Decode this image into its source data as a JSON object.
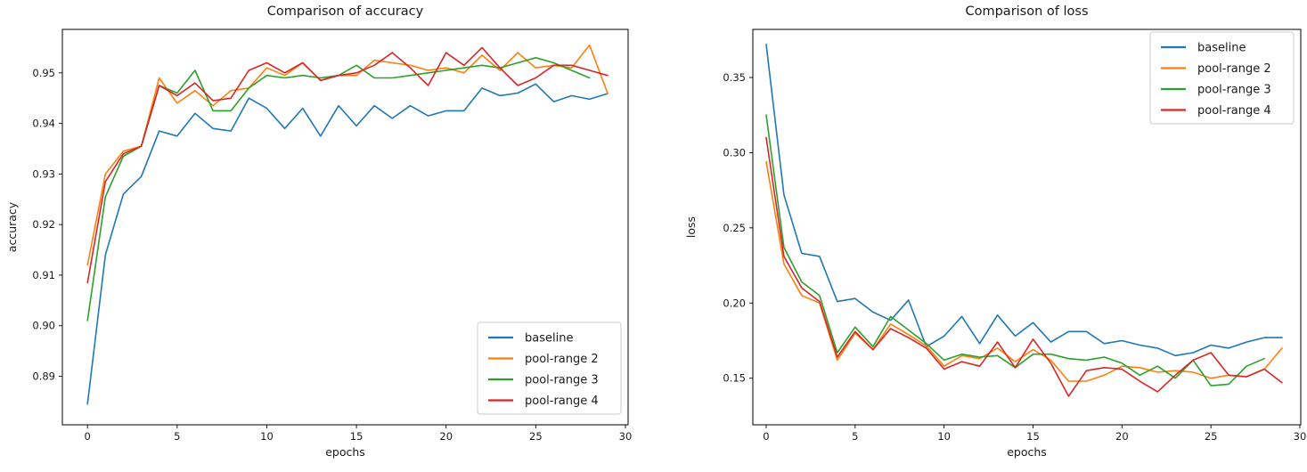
{
  "figure": {
    "background": "#ffffff",
    "text_color": "#1a1a1a",
    "spine_color": "#000000",
    "legend_border_color": "#cccccc"
  },
  "chart_data": [
    {
      "type": "line",
      "title": "Comparison of accuracy",
      "xlabel": "epochs",
      "ylabel": "accuracy",
      "xlim": [
        -1.4,
        30.15
      ],
      "ylim": [
        0.8804,
        0.9586
      ],
      "xticks": [
        0,
        5,
        10,
        15,
        20,
        25,
        30
      ],
      "yticks": [
        0.89,
        0.9,
        0.91,
        0.92,
        0.93,
        0.94,
        0.95
      ],
      "ytick_labels": [
        "0.89",
        "0.90",
        "0.91",
        "0.92",
        "0.93",
        "0.94",
        "0.95"
      ],
      "grid": false,
      "legend_position": "lower right",
      "series": [
        {
          "name": "baseline",
          "color": "#1f77b4",
          "values": [
            0.8845,
            0.914,
            0.926,
            0.9295,
            0.9385,
            0.9375,
            0.942,
            0.939,
            0.9385,
            0.945,
            0.943,
            0.939,
            0.943,
            0.9375,
            0.9435,
            0.9395,
            0.9435,
            0.941,
            0.9435,
            0.9415,
            0.9425,
            0.9425,
            0.947,
            0.9455,
            0.946,
            0.9478,
            0.9443,
            0.9455,
            0.9448,
            0.9459
          ]
        },
        {
          "name": "pool-range 2",
          "color": "#ff7f0e",
          "values": [
            0.912,
            0.93,
            0.9345,
            0.9355,
            0.949,
            0.944,
            0.9465,
            0.9435,
            0.9465,
            0.947,
            0.951,
            0.9495,
            0.952,
            0.9485,
            0.9495,
            0.9495,
            0.9525,
            0.952,
            0.9515,
            0.9505,
            0.951,
            0.95,
            0.9535,
            0.9505,
            0.954,
            0.951,
            0.9515,
            0.951,
            0.9555,
            0.946
          ]
        },
        {
          "name": "pool-range 3",
          "color": "#2ca02c",
          "values": [
            0.901,
            0.9255,
            0.9335,
            0.9355,
            0.9475,
            0.946,
            0.9505,
            0.9425,
            0.9425,
            0.947,
            0.9495,
            0.949,
            0.9495,
            0.949,
            0.9495,
            0.9515,
            0.949,
            0.949,
            0.9495,
            0.95,
            0.9505,
            0.951,
            0.9515,
            0.951,
            0.952,
            0.953,
            0.952,
            0.9505,
            0.949
          ]
        },
        {
          "name": "pool-range 4",
          "color": "#d62728",
          "values": [
            0.9085,
            0.9285,
            0.934,
            0.9355,
            0.9475,
            0.9455,
            0.948,
            0.9445,
            0.945,
            0.9505,
            0.952,
            0.95,
            0.952,
            0.9485,
            0.9495,
            0.95,
            0.9515,
            0.954,
            0.951,
            0.9475,
            0.954,
            0.9515,
            0.955,
            0.951,
            0.9475,
            0.949,
            0.9515,
            0.9515,
            0.9505,
            0.9495
          ]
        }
      ]
    },
    {
      "type": "line",
      "title": "Comparison of loss",
      "xlabel": "epochs",
      "ylabel": "loss",
      "xlim": [
        -0.75,
        30.05
      ],
      "ylim": [
        0.119,
        0.382
      ],
      "xticks": [
        0,
        5,
        10,
        15,
        20,
        25,
        30
      ],
      "yticks": [
        0.15,
        0.2,
        0.25,
        0.3,
        0.35
      ],
      "ytick_labels": [
        "0.15",
        "0.20",
        "0.25",
        "0.30",
        "0.35"
      ],
      "grid": false,
      "legend_position": "upper right",
      "series": [
        {
          "name": "baseline",
          "color": "#1f77b4",
          "values": [
            0.372,
            0.272,
            0.233,
            0.231,
            0.201,
            0.203,
            0.194,
            0.1885,
            0.202,
            0.171,
            0.178,
            0.191,
            0.173,
            0.192,
            0.178,
            0.187,
            0.174,
            0.181,
            0.181,
            0.173,
            0.175,
            0.172,
            0.17,
            0.165,
            0.167,
            0.172,
            0.17,
            0.174,
            0.177,
            0.177
          ]
        },
        {
          "name": "pool-range 2",
          "color": "#ff7f0e",
          "values": [
            0.294,
            0.226,
            0.205,
            0.2,
            0.162,
            0.18,
            0.169,
            0.186,
            0.179,
            0.1715,
            0.158,
            0.165,
            0.163,
            0.17,
            0.161,
            0.169,
            0.162,
            0.148,
            0.148,
            0.152,
            0.158,
            0.157,
            0.154,
            0.155,
            0.154,
            0.15,
            0.152,
            0.151,
            0.156,
            0.17
          ]
        },
        {
          "name": "pool-range 3",
          "color": "#2ca02c",
          "values": [
            0.325,
            0.237,
            0.214,
            0.205,
            0.167,
            0.184,
            0.171,
            0.191,
            0.182,
            0.173,
            0.162,
            0.166,
            0.164,
            0.165,
            0.157,
            0.166,
            0.166,
            0.163,
            0.162,
            0.164,
            0.16,
            0.152,
            0.158,
            0.15,
            0.162,
            0.145,
            0.146,
            0.158,
            0.163
          ]
        },
        {
          "name": "pool-range 4",
          "color": "#d62728",
          "values": [
            0.31,
            0.231,
            0.21,
            0.201,
            0.164,
            0.181,
            0.169,
            0.183,
            0.177,
            0.17,
            0.156,
            0.161,
            0.158,
            0.174,
            0.157,
            0.176,
            0.16,
            0.138,
            0.155,
            0.157,
            0.156,
            0.148,
            0.141,
            0.152,
            0.162,
            0.167,
            0.152,
            0.151,
            0.156,
            0.147
          ]
        }
      ]
    }
  ]
}
